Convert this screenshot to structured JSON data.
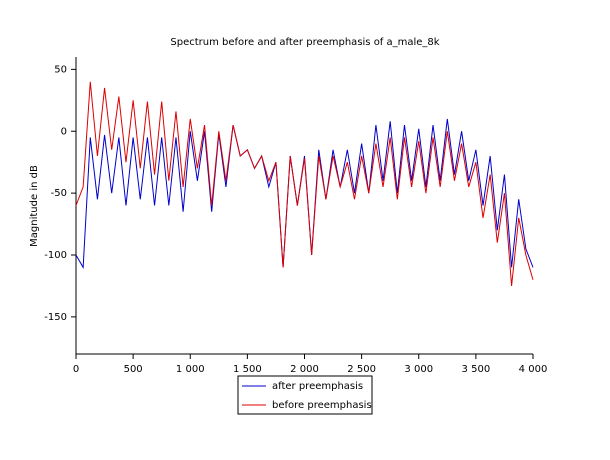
{
  "chart_data": {
    "type": "line",
    "title": "Spectrum before and after preemphasis of a_male_8k",
    "y_label": "Magnitude in dB",
    "x": [
      0,
      62.5,
      125,
      187.5,
      250,
      312.5,
      375,
      437.5,
      500,
      562.5,
      625,
      687.5,
      750,
      812.5,
      875,
      937.5,
      1000,
      1062.5,
      1125,
      1187.5,
      1250,
      1312.5,
      1375,
      1437.5,
      1500,
      1562.5,
      1625,
      1687.5,
      1750,
      1812.5,
      1875,
      1937.5,
      2000,
      2062.5,
      2125,
      2187.5,
      2250,
      2312.5,
      2375,
      2437.5,
      2500,
      2562.5,
      2625,
      2687.5,
      2750,
      2812.5,
      2875,
      2937.5,
      3000,
      3062.5,
      3125,
      3187.5,
      3250,
      3312.5,
      3375,
      3437.5,
      3500,
      3562.5,
      3625,
      3687.5,
      3750,
      3812.5,
      3875,
      3937.5,
      4000
    ],
    "series": [
      {
        "name": "after preemphasis",
        "color": "#0000cc",
        "values": [
          -100,
          -110,
          -5,
          -55,
          -3,
          -50,
          -5,
          -60,
          -5,
          -55,
          -5,
          -60,
          -5,
          -60,
          -5,
          -65,
          0,
          -40,
          0,
          -65,
          -2,
          -45,
          5,
          -20,
          -15,
          -30,
          -20,
          -45,
          -25,
          -110,
          -20,
          -60,
          -20,
          -100,
          -15,
          -55,
          -15,
          -45,
          -15,
          -50,
          -10,
          -50,
          5,
          -40,
          8,
          -50,
          5,
          -40,
          2,
          -45,
          5,
          -40,
          10,
          -35,
          0,
          -40,
          -15,
          -60,
          -20,
          -80,
          -35,
          -110,
          -55,
          -95,
          -110
        ]
      },
      {
        "name": "before preemphasis",
        "color": "#dd0000",
        "values": [
          -60,
          -45,
          40,
          -20,
          35,
          -15,
          28,
          -25,
          25,
          -30,
          24,
          -35,
          24,
          -40,
          16,
          -45,
          10,
          -30,
          5,
          -60,
          0,
          -40,
          5,
          -20,
          -15,
          -30,
          -20,
          -40,
          -25,
          -110,
          -20,
          -60,
          -22,
          -100,
          -20,
          -55,
          -20,
          -45,
          -25,
          -55,
          -20,
          -50,
          -10,
          -45,
          -5,
          -55,
          -5,
          -45,
          -8,
          -50,
          -5,
          -45,
          0,
          -40,
          -10,
          -45,
          -25,
          -70,
          -35,
          -90,
          -50,
          -125,
          -70,
          -100,
          -120
        ]
      }
    ],
    "xlim": [
      0,
      4000
    ],
    "ylim": [
      -180,
      60
    ],
    "xticks": [
      0,
      500,
      {
        "value": 1000,
        "label": "1 000"
      },
      {
        "value": 1500,
        "label": "1 500"
      },
      {
        "value": 2000,
        "label": "2 000"
      },
      {
        "value": 2500,
        "label": "2 500"
      },
      {
        "value": 3000,
        "label": "3 000"
      },
      {
        "value": 3500,
        "label": "3 500"
      },
      {
        "value": 4000,
        "label": "4 000"
      }
    ],
    "yticks": [
      -150,
      -100,
      -50,
      0,
      50
    ]
  }
}
